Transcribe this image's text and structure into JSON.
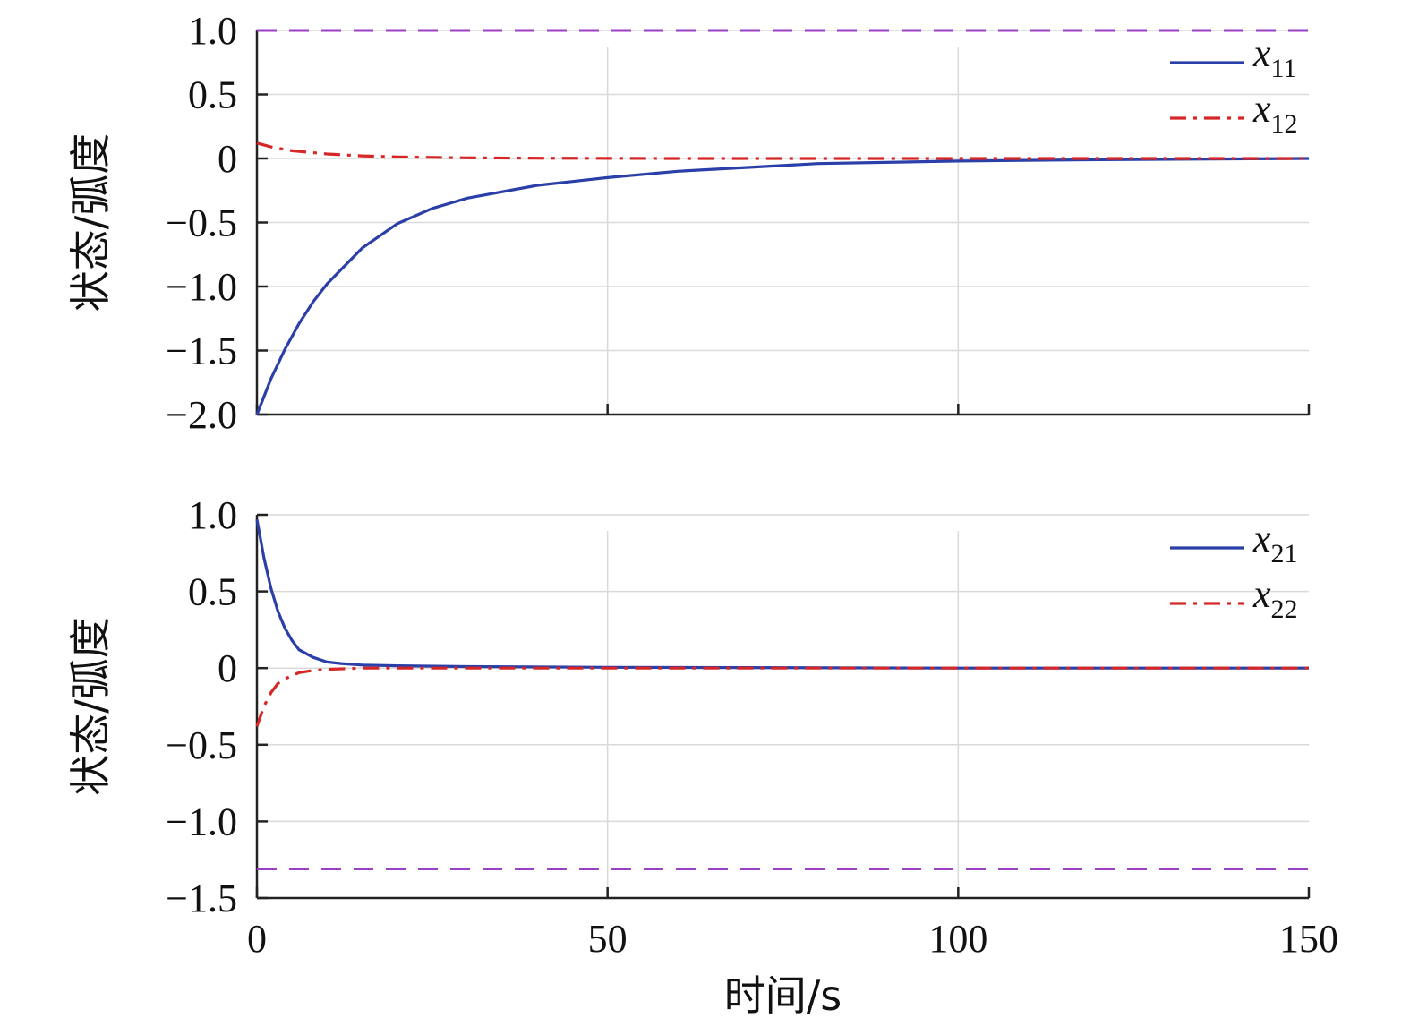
{
  "chart_data": [
    {
      "type": "line",
      "xlabel": "",
      "ylabel": "状态/弧度",
      "xlim": [
        0,
        150
      ],
      "ylim": [
        -2.0,
        1.0
      ],
      "xticks": [
        0,
        50,
        100,
        150
      ],
      "xtick_labels": [
        "",
        "",
        "",
        ""
      ],
      "yticks": [
        1.0,
        0.5,
        0,
        -0.5,
        -1.0,
        -1.5,
        -2.0
      ],
      "ytick_labels": [
        "1.0",
        "0.5",
        "0",
        "−0.5",
        "−1.0",
        "−1.5",
        "−2.0"
      ],
      "grid": true,
      "legend_position": "top-right",
      "series": [
        {
          "name": "x11",
          "name_main": "x",
          "name_sub": "11",
          "color": "#2b3fa8",
          "style": "solid",
          "x": [
            0,
            2,
            4,
            6,
            8,
            10,
            15,
            20,
            25,
            30,
            40,
            50,
            60,
            70,
            80,
            100,
            120,
            150
          ],
          "y": [
            -2.0,
            -1.72,
            -1.49,
            -1.29,
            -1.12,
            -0.98,
            -0.7,
            -0.51,
            -0.39,
            -0.31,
            -0.21,
            -0.15,
            -0.1,
            -0.07,
            -0.04,
            -0.02,
            -0.01,
            0.0
          ]
        },
        {
          "name": "x12",
          "name_main": "x",
          "name_sub": "12",
          "color": "#d62728",
          "style": "dashdot",
          "x": [
            0,
            2,
            5,
            10,
            15,
            20,
            30,
            40,
            60,
            100,
            150
          ],
          "y": [
            0.12,
            0.09,
            0.06,
            0.035,
            0.02,
            0.012,
            0.005,
            0.002,
            0.0,
            0.0,
            0.0
          ]
        },
        {
          "name": "upper bound",
          "legend": false,
          "color": "#9b3fc4",
          "style": "dashed",
          "x": [
            0,
            150
          ],
          "y": [
            1.0,
            1.0
          ]
        }
      ]
    },
    {
      "type": "line",
      "xlabel": "时间/s",
      "ylabel": "状态/弧度",
      "xlim": [
        0,
        150
      ],
      "ylim": [
        -1.5,
        1.0
      ],
      "xticks": [
        0,
        50,
        100,
        150
      ],
      "xtick_labels": [
        "0",
        "50",
        "100",
        "150"
      ],
      "yticks": [
        1.0,
        0.5,
        0,
        -0.5,
        -1.0,
        -1.5
      ],
      "ytick_labels": [
        "1.0",
        "0.5",
        "0",
        "−0.5",
        "−1.0",
        "−1.5"
      ],
      "grid": true,
      "legend_position": "top-right",
      "series": [
        {
          "name": "x21",
          "name_main": "x",
          "name_sub": "21",
          "color": "#2b3fa8",
          "style": "solid",
          "x": [
            0,
            1,
            2,
            3,
            4,
            5,
            6,
            8,
            10,
            12,
            15,
            20,
            30,
            50,
            100,
            150
          ],
          "y": [
            0.97,
            0.72,
            0.52,
            0.37,
            0.26,
            0.18,
            0.12,
            0.07,
            0.04,
            0.03,
            0.02,
            0.015,
            0.01,
            0.005,
            0.0,
            0.0
          ]
        },
        {
          "name": "x22",
          "name_main": "x",
          "name_sub": "22",
          "color": "#d62728",
          "style": "dashdot",
          "x": [
            0,
            1,
            2,
            3,
            4,
            6,
            8,
            10,
            15,
            20,
            50,
            150
          ],
          "y": [
            -0.38,
            -0.25,
            -0.16,
            -0.1,
            -0.07,
            -0.03,
            -0.015,
            -0.008,
            0.0,
            0.0,
            0.0,
            0.0
          ]
        },
        {
          "name": "lower bound",
          "legend": false,
          "color": "#9b3fc4",
          "style": "dashed",
          "x": [
            0,
            150
          ],
          "y": [
            -1.31,
            -1.31
          ]
        }
      ]
    }
  ]
}
